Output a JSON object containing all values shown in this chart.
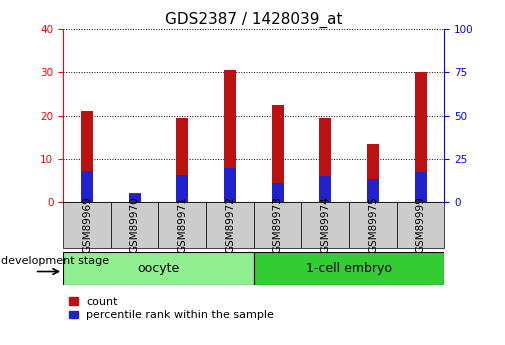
{
  "title": "GDS2387 / 1428039_at",
  "samples": [
    "GSM89969",
    "GSM89970",
    "GSM89971",
    "GSM89972",
    "GSM89973",
    "GSM89974",
    "GSM89975",
    "GSM89999"
  ],
  "count_values": [
    21,
    2,
    19.5,
    30.5,
    22.5,
    19.5,
    13.5,
    30
  ],
  "percentile_values": [
    18,
    4.5,
    15.5,
    19.5,
    11,
    15,
    13.5,
    17.5
  ],
  "groups": [
    {
      "label": "oocyte",
      "start": 0,
      "end": 4,
      "color": "#90EE90"
    },
    {
      "label": "1-cell embryo",
      "start": 4,
      "end": 8,
      "color": "#33CC33"
    }
  ],
  "group_label": "development stage",
  "ylim_left": [
    0,
    40
  ],
  "ylim_right": [
    0,
    100
  ],
  "yticks_left": [
    0,
    10,
    20,
    30,
    40
  ],
  "yticks_right": [
    0,
    25,
    50,
    75,
    100
  ],
  "bar_color_red": "#BB1111",
  "bar_color_blue": "#2222CC",
  "bar_width": 0.25,
  "background_color": "#ffffff",
  "legend_count_label": "count",
  "legend_percentile_label": "percentile rank within the sample",
  "gray_cell_color": "#CCCCCC",
  "grid_color": "#000000",
  "title_fontsize": 11,
  "tick_fontsize": 7.5,
  "group_fontsize": 9,
  "legend_fontsize": 8
}
